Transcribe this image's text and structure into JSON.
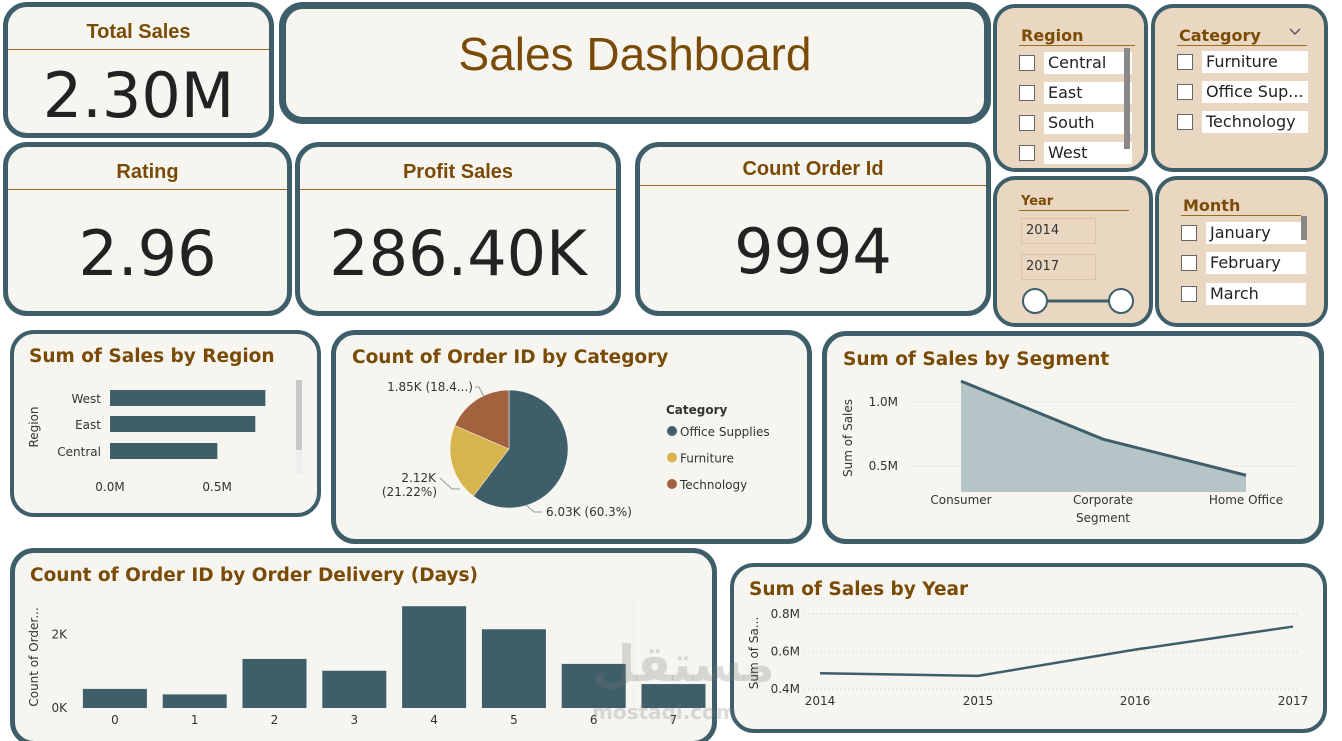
{
  "kpis": {
    "total_sales": {
      "title": "Total Sales",
      "value": "2.30M"
    },
    "rating": {
      "title": "Rating",
      "value": "2.96"
    },
    "profit_sales": {
      "title": "Profit Sales",
      "value": "286.40K"
    },
    "count_order": {
      "title": "Count Order Id",
      "value": "9994"
    }
  },
  "dashboard_title": "Sales Dashboard",
  "slicers": {
    "region": {
      "title": "Region",
      "items": [
        "Central",
        "East",
        "South",
        "West"
      ]
    },
    "category": {
      "title": "Category",
      "items": [
        "Furniture",
        "Office Sup...",
        "Technology"
      ]
    },
    "year": {
      "title": "Year",
      "from": "2014",
      "to": "2017"
    },
    "month": {
      "title": "Month",
      "items": [
        "January",
        "February",
        "March"
      ]
    }
  },
  "visuals": {
    "sales_by_region": {
      "title": "Sum of Sales by Region"
    },
    "orders_by_category": {
      "title": "Count of Order ID by Category",
      "legend_title": "Category"
    },
    "sales_by_segment": {
      "title": "Sum of Sales by Segment"
    },
    "orders_by_delivery": {
      "title": "Count of Order ID by Order Delivery (Days)"
    },
    "sales_by_year": {
      "title": "Sum of Sales by Year"
    }
  },
  "watermark": {
    "arabic": "مستقل",
    "latin": "mostaql.com"
  },
  "colors": {
    "accent": "#3e5f69",
    "title": "#7a4b06",
    "furniture": "#d7b44e",
    "technology": "#a3623e",
    "card_bg": "#f7f5f0",
    "slicer_bg": "#ead7c1"
  },
  "chart_data": [
    {
      "type": "bar",
      "orientation": "horizontal",
      "title": "Sum of Sales by Region",
      "ylabel": "Region",
      "categories": [
        "West",
        "East",
        "Central"
      ],
      "values": [
        0.725,
        0.678,
        0.501
      ],
      "xticks": [
        "0.0M",
        "0.5M"
      ],
      "xlim": [
        0,
        0.98
      ]
    },
    {
      "type": "pie",
      "title": "Count of Order ID by Category",
      "legend_title": "Category",
      "categories": [
        "Office Supplies",
        "Furniture",
        "Technology"
      ],
      "values": [
        6026,
        2121,
        1847
      ],
      "labels": [
        "6.03K (60.3%)",
        "2.12K (21.22%)",
        "1.85K (18.4...)"
      ],
      "legend": "right"
    },
    {
      "type": "area",
      "title": "Sum of Sales by Segment",
      "xlabel": "Segment",
      "ylabel": "Sum of Sales",
      "categories": [
        "Consumer",
        "Corporate",
        "Home Office"
      ],
      "values": [
        1.16,
        0.71,
        0.43
      ],
      "yticks": [
        "0.5M",
        "1.0M"
      ],
      "ylim": [
        0.3,
        1.2
      ]
    },
    {
      "type": "bar",
      "title": "Count of Order ID by Order Delivery (Days)",
      "xlabel": "",
      "ylabel": "Count of Order...",
      "categories": [
        "0",
        "1",
        "2",
        "3",
        "4",
        "5",
        "6",
        "7"
      ],
      "values": [
        519,
        370,
        1334,
        1013,
        2767,
        2141,
        1199,
        651
      ],
      "yticks": [
        "0K",
        "2K"
      ],
      "ylim": [
        0,
        2800
      ]
    },
    {
      "type": "line",
      "title": "Sum of Sales by Year",
      "ylabel": "Sum of Sa...",
      "categories": [
        "2014",
        "2015",
        "2016",
        "2017"
      ],
      "values": [
        0.484,
        0.47,
        0.61,
        0.733
      ],
      "yticks": [
        "0.4M",
        "0.6M",
        "0.8M"
      ],
      "ylim": [
        0.4,
        0.8
      ]
    }
  ]
}
